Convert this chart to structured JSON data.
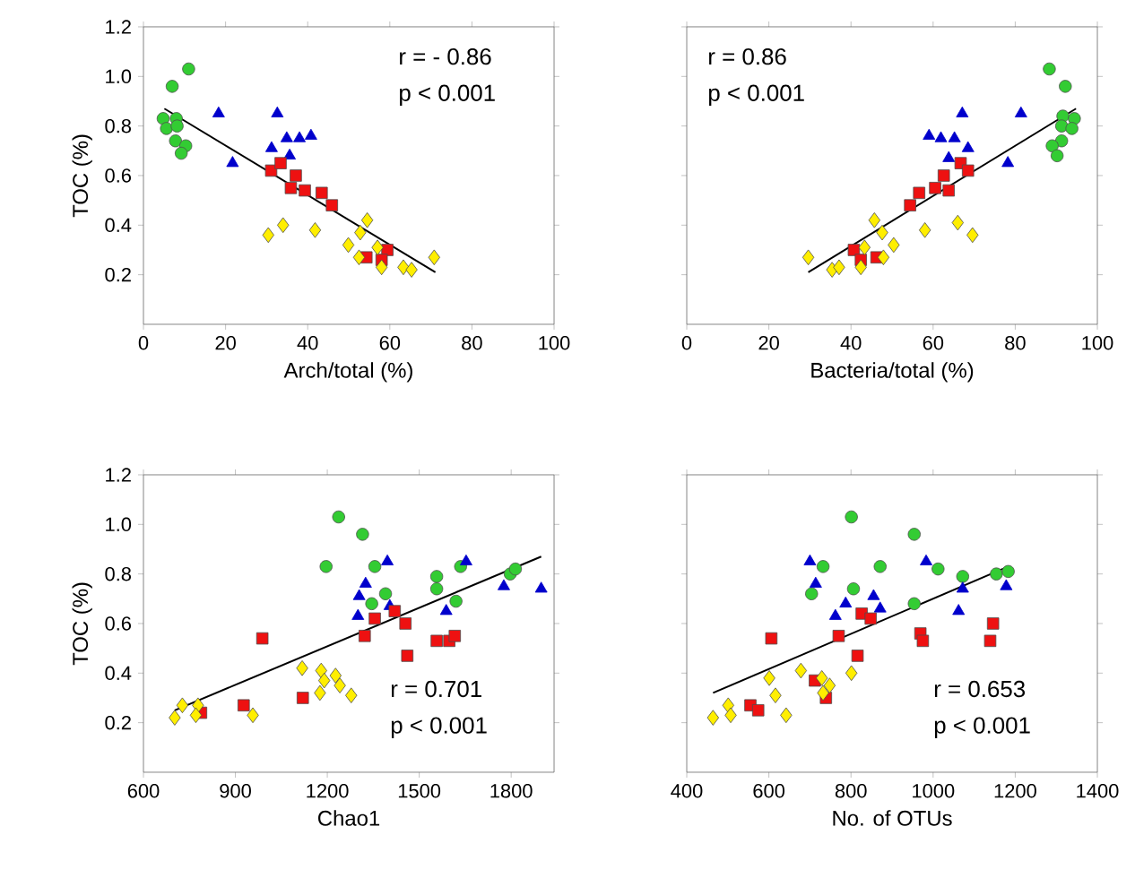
{
  "chart_data": [
    {
      "type": "scatter",
      "xlabel": "Arch/total (%)",
      "ylabel": "TOC (%)",
      "xlim": [
        0,
        100
      ],
      "ylim": [
        0,
        1.2
      ],
      "xticks": [
        0,
        20,
        40,
        60,
        80,
        100
      ],
      "yticks": [
        {
          "value": 0.2,
          "label": "0.2"
        },
        {
          "value": 0.4,
          "label": "0.4"
        },
        {
          "value": 0.6,
          "label": "0.6"
        },
        {
          "value": 0.8,
          "label": "0.8"
        },
        {
          "value": 1.0,
          "label": "1.0"
        },
        {
          "value": 1.2,
          "label": "1.2"
        }
      ],
      "annotations": [
        "r = - 0.86",
        "p < 0.001"
      ],
      "series": [
        {
          "color": "#33cc33",
          "marker": "circle",
          "x": [
            11,
            7,
            4.8,
            8,
            5.6,
            8.2,
            7.8,
            10.3,
            9.2
          ],
          "values": [
            1.03,
            0.96,
            0.83,
            0.83,
            0.79,
            0.8,
            0.74,
            0.72,
            0.69
          ]
        },
        {
          "color": "#0000cc",
          "marker": "triangle",
          "x": [
            18.3,
            32.6,
            21.7,
            31.2,
            34.9,
            38,
            40.8,
            35.6
          ],
          "values": [
            0.85,
            0.85,
            0.65,
            0.71,
            0.75,
            0.75,
            0.76,
            0.68
          ]
        },
        {
          "color": "#ee1111",
          "marker": "square",
          "x": [
            31.1,
            33.4,
            37.1,
            35.9,
            39.3,
            43.4,
            45.9,
            54.3,
            59.4,
            58
          ],
          "values": [
            0.62,
            0.65,
            0.6,
            0.55,
            0.54,
            0.53,
            0.48,
            0.27,
            0.3,
            0.26
          ]
        },
        {
          "color": "#ffee00",
          "marker": "diamond",
          "x": [
            30.4,
            34,
            41.8,
            49.9,
            54.5,
            52.8,
            52.5,
            57,
            58,
            63.3,
            65.3,
            70.8
          ],
          "values": [
            0.36,
            0.4,
            0.38,
            0.32,
            0.42,
            0.37,
            0.27,
            0.31,
            0.23,
            0.23,
            0.22,
            0.27
          ]
        },
        {
          "type": "line",
          "color": "#000000",
          "marker": "none",
          "x": [
            5.1,
            71.1
          ],
          "values": [
            0.87,
            0.21
          ]
        }
      ]
    },
    {
      "type": "scatter",
      "xlabel": "Bacteria/total (%)",
      "xlim": [
        0,
        100
      ],
      "ylim": [
        0,
        1.2
      ],
      "tick_labels": "x",
      "xticks": [
        0,
        20,
        40,
        60,
        80,
        100
      ],
      "yticks": [
        0.2,
        0.4,
        0.6,
        0.8,
        1.0,
        1.2
      ],
      "annotations": [
        "r = 0.86",
        "p < 0.001"
      ],
      "series": [
        {
          "color": "#33cc33",
          "marker": "circle",
          "x": [
            88.3,
            92.2,
            91.6,
            94.4,
            91.3,
            93.8,
            91.3,
            89,
            90.2
          ],
          "values": [
            1.03,
            0.96,
            0.84,
            0.83,
            0.8,
            0.79,
            0.74,
            0.72,
            0.68
          ]
        },
        {
          "color": "#0000cc",
          "marker": "triangle",
          "x": [
            67.1,
            81.4,
            59,
            61.9,
            65.2,
            68.5,
            63.8,
            78.2
          ],
          "values": [
            0.85,
            0.85,
            0.76,
            0.75,
            0.75,
            0.71,
            0.67,
            0.65
          ]
        },
        {
          "color": "#ee1111",
          "marker": "square",
          "x": [
            66.7,
            68.5,
            62.6,
            60.5,
            63.8,
            56.6,
            54.4,
            40.7,
            42.4,
            46.2
          ],
          "values": [
            0.65,
            0.62,
            0.6,
            0.55,
            0.54,
            0.53,
            0.48,
            0.3,
            0.26,
            0.27
          ]
        },
        {
          "color": "#ffee00",
          "marker": "diamond",
          "x": [
            29.6,
            35.4,
            37.1,
            42.4,
            43.3,
            45.7,
            47.6,
            47.9,
            50.4,
            58,
            66,
            69.6
          ],
          "values": [
            0.27,
            0.22,
            0.23,
            0.23,
            0.31,
            0.42,
            0.37,
            0.27,
            0.32,
            0.38,
            0.41,
            0.36
          ]
        },
        {
          "type": "line",
          "color": "#000000",
          "marker": "none",
          "x": [
            29.6,
            94.8
          ],
          "values": [
            0.21,
            0.87
          ]
        }
      ]
    },
    {
      "type": "scatter",
      "xlabel": "Chao1",
      "ylabel": "TOC (%)",
      "xlim": [
        600,
        1940
      ],
      "ylim": [
        0,
        1.2
      ],
      "xticks": [
        600,
        900,
        1200,
        1500,
        1800
      ],
      "yticks": [
        {
          "value": 0.2,
          "label": "0.2"
        },
        {
          "value": 0.4,
          "label": "0.4"
        },
        {
          "value": 0.6,
          "label": "0.6"
        },
        {
          "value": 0.8,
          "label": "0.8"
        },
        {
          "value": 1.0,
          "label": "1.0"
        },
        {
          "value": 1.2,
          "label": "1.2"
        }
      ],
      "annotations": [
        "r = 0.701",
        "p < 0.001"
      ],
      "series": [
        {
          "color": "#33cc33",
          "marker": "circle",
          "x": [
            1237,
            1315,
            1196,
            1355,
            1390,
            1345,
            1557,
            1557,
            1635,
            1620,
            1797,
            1814
          ],
          "values": [
            1.03,
            0.96,
            0.83,
            0.83,
            0.72,
            0.68,
            0.79,
            0.74,
            0.83,
            0.69,
            0.8,
            0.82
          ]
        },
        {
          "color": "#0000cc",
          "marker": "triangle",
          "x": [
            1396,
            1325,
            1304,
            1300,
            1404,
            1588,
            1653,
            1776,
            1898
          ],
          "values": [
            0.85,
            0.76,
            0.71,
            0.63,
            0.67,
            0.65,
            0.85,
            0.75,
            0.74
          ]
        },
        {
          "color": "#ee1111",
          "marker": "square",
          "x": [
            988,
            927,
            788,
            1120,
            1322,
            1355,
            1420,
            1455,
            1461,
            1557,
            1598,
            1616
          ],
          "values": [
            0.54,
            0.27,
            0.24,
            0.3,
            0.55,
            0.62,
            0.65,
            0.6,
            0.47,
            0.53,
            0.53,
            0.55
          ]
        },
        {
          "color": "#ffee00",
          "marker": "diamond",
          "x": [
            702,
            727,
            778,
            771,
            957,
            1118,
            1180,
            1190,
            1227,
            1241,
            1176,
            1278
          ],
          "values": [
            0.22,
            0.27,
            0.27,
            0.23,
            0.23,
            0.42,
            0.41,
            0.37,
            0.39,
            0.35,
            0.32,
            0.31
          ]
        },
        {
          "type": "line",
          "color": "#000000",
          "marker": "none",
          "x": [
            702,
            1898
          ],
          "values": [
            0.25,
            0.87
          ]
        }
      ]
    },
    {
      "type": "scatter",
      "xlabel": "No. of OTUs",
      "xlim": [
        400,
        1400
      ],
      "ylim": [
        0,
        1.2
      ],
      "tick_labels": "x",
      "xticks": [
        400,
        600,
        800,
        1000,
        1200,
        1400
      ],
      "yticks": [
        0.2,
        0.4,
        0.6,
        0.8,
        1.0,
        1.2
      ],
      "annotations": [
        "r = 0.653",
        "p < 0.001"
      ],
      "series": [
        {
          "color": "#33cc33",
          "marker": "circle",
          "x": [
            801,
            954,
            732,
            871,
            1012,
            704,
            806,
            954,
            1072,
            1154,
            1183
          ],
          "values": [
            1.03,
            0.96,
            0.83,
            0.83,
            0.82,
            0.72,
            0.74,
            0.68,
            0.79,
            0.8,
            0.81
          ]
        },
        {
          "color": "#0000cc",
          "marker": "triangle",
          "x": [
            700,
            714,
            983,
            787,
            762,
            855,
            871,
            1072,
            1062,
            1178
          ],
          "values": [
            0.85,
            0.76,
            0.85,
            0.68,
            0.63,
            0.71,
            0.66,
            0.74,
            0.65,
            0.75
          ]
        },
        {
          "color": "#ee1111",
          "marker": "square",
          "x": [
            606,
            826,
            848,
            770,
            816,
            969,
            975,
            1146,
            1139,
            712,
            739,
            555,
            574
          ],
          "values": [
            0.54,
            0.64,
            0.62,
            0.55,
            0.47,
            0.56,
            0.53,
            0.6,
            0.53,
            0.37,
            0.3,
            0.27,
            0.25
          ]
        },
        {
          "color": "#ffee00",
          "marker": "diamond",
          "x": [
            464,
            501,
            507,
            601,
            616,
            642,
            678,
            729,
            732,
            748,
            801
          ],
          "values": [
            0.22,
            0.27,
            0.23,
            0.38,
            0.31,
            0.23,
            0.41,
            0.38,
            0.32,
            0.35,
            0.4
          ]
        },
        {
          "type": "line",
          "color": "#000000",
          "marker": "none",
          "x": [
            464,
            1183
          ],
          "values": [
            0.32,
            0.83
          ]
        }
      ]
    }
  ]
}
